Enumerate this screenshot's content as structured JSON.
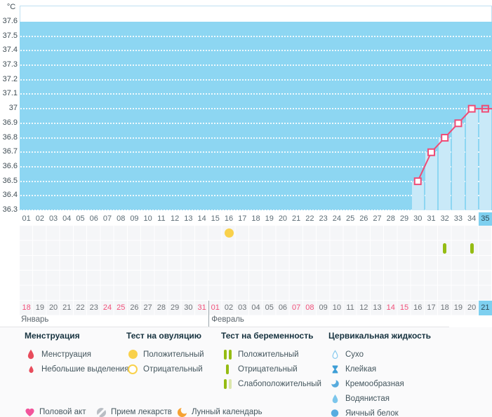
{
  "axis": {
    "unit_label": "°C"
  },
  "chart_data": {
    "type": "line",
    "title": "",
    "ylabel": "°C",
    "ylim": [
      36.3,
      37.6
    ],
    "y_tick_labels": [
      "37.6",
      "37.5",
      "37.4",
      "37.3",
      "37.2",
      "37.1",
      "37",
      "36.9",
      "36.8",
      "36.7",
      "36.6",
      "36.5",
      "36.4",
      "36.3"
    ],
    "x_axis": "cycle_day",
    "x_range": [
      1,
      35
    ],
    "current_cycle_day": 35,
    "grid": "horizontal-dotted-white",
    "series": [
      {
        "name": "basal-temperature",
        "points": [
          {
            "day": 30,
            "temp": 36.5
          },
          {
            "day": 31,
            "temp": 36.7
          },
          {
            "day": 32,
            "temp": 36.8
          },
          {
            "day": 33,
            "temp": 36.9
          },
          {
            "day": 34,
            "temp": 37.0
          },
          {
            "day": 35,
            "temp": 37.0
          }
        ],
        "line_extends_to_right_edge": true
      }
    ],
    "event_markers": {
      "ovulation_test_positive_days": [
        16
      ],
      "pregnancy_test_negative_days": [
        32,
        34
      ]
    }
  },
  "day_row": {
    "labels": [
      "01",
      "02",
      "03",
      "04",
      "05",
      "06",
      "07",
      "08",
      "09",
      "10",
      "11",
      "12",
      "13",
      "14",
      "15",
      "16",
      "17",
      "18",
      "19",
      "20",
      "21",
      "22",
      "23",
      "24",
      "25",
      "26",
      "27",
      "28",
      "29",
      "30",
      "31",
      "32",
      "33",
      "34",
      "35"
    ],
    "highlighted": "35"
  },
  "marker_grid": {
    "rows": 5
  },
  "date_row": {
    "dates": [
      {
        "label": "18",
        "red": true
      },
      {
        "label": "19"
      },
      {
        "label": "20"
      },
      {
        "label": "21"
      },
      {
        "label": "22"
      },
      {
        "label": "23"
      },
      {
        "label": "24",
        "red": true
      },
      {
        "label": "25",
        "red": true
      },
      {
        "label": "26"
      },
      {
        "label": "27"
      },
      {
        "label": "28"
      },
      {
        "label": "29"
      },
      {
        "label": "30"
      },
      {
        "label": "31",
        "red": true
      },
      {
        "label": "01",
        "red": true
      },
      {
        "label": "02"
      },
      {
        "label": "03"
      },
      {
        "label": "04"
      },
      {
        "label": "05"
      },
      {
        "label": "06"
      },
      {
        "label": "07",
        "red": true
      },
      {
        "label": "08",
        "red": true
      },
      {
        "label": "09"
      },
      {
        "label": "10"
      },
      {
        "label": "11"
      },
      {
        "label": "12"
      },
      {
        "label": "13"
      },
      {
        "label": "14",
        "red": true
      },
      {
        "label": "15",
        "red": true
      },
      {
        "label": "16"
      },
      {
        "label": "17"
      },
      {
        "label": "18"
      },
      {
        "label": "19"
      },
      {
        "label": "20"
      },
      {
        "label": "21",
        "highlighted": true
      }
    ]
  },
  "months": [
    {
      "label": "Январь",
      "start_index": 0
    },
    {
      "label": "Февраль",
      "start_index": 14
    }
  ],
  "legend": {
    "sections": [
      {
        "title": "Менструация",
        "items": [
          {
            "icon": "blood-drop-icon",
            "label": "Менструация"
          },
          {
            "icon": "small-blood-drop-icon",
            "label": "Небольшие выделения"
          }
        ]
      },
      {
        "title": "Тест на овуляцию",
        "items": [
          {
            "icon": "yellow-circle-filled-icon",
            "label": "Положительный"
          },
          {
            "icon": "yellow-circle-outline-icon",
            "label": "Отрицательный"
          }
        ]
      },
      {
        "title": "Тест на беременность",
        "items": [
          {
            "icon": "double-green-bars-icon",
            "label": "Положительный"
          },
          {
            "icon": "single-green-bar-icon",
            "label": "Отрицательный"
          },
          {
            "icon": "green-pale-bars-icon",
            "label": "Слабоположительный"
          }
        ]
      },
      {
        "title": "Цервикальная жидкость",
        "items": [
          {
            "icon": "drop-outline-icon",
            "label": "Сухо"
          },
          {
            "icon": "hourglass-icon",
            "label": "Клейкая"
          },
          {
            "icon": "crescent-icon",
            "label": "Кремообразная"
          },
          {
            "icon": "drop-filled-icon",
            "label": "Водянистая"
          },
          {
            "icon": "circle-filled-icon",
            "label": "Яичный белок"
          }
        ]
      }
    ],
    "footer_items": [
      {
        "icon": "heart-icon",
        "label": "Половой акт"
      },
      {
        "icon": "pill-icon",
        "label": "Прием лекарств"
      },
      {
        "icon": "moon-icon",
        "label": "Лунный календарь"
      }
    ]
  },
  "colors": {
    "plot_bg": "#8dd6f2",
    "column_fill": "#c9e9f8",
    "line": "#ef4b76",
    "highlight_cell": "#7ed0f0",
    "red_date": "#f0507a",
    "ovulation_yellow": "#f9d14b",
    "pregnancy_green": "#95bc13",
    "pregnancy_pale_green": "#dbe6ab",
    "fluid_blue": "#57abdd",
    "menstruation_red": "#e84c5c",
    "heart_pink": "#f2549b",
    "pill_gray": "#b9bec4",
    "moon_orange": "#f6a233"
  }
}
